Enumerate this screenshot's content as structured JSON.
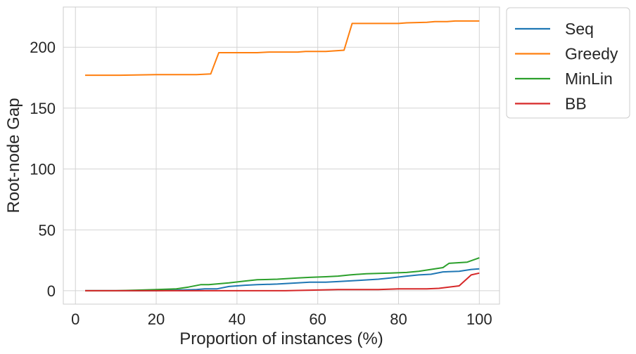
{
  "chart_data": {
    "type": "line",
    "title": "",
    "xlabel": "Proportion of instances (%)",
    "ylabel": "Root-node Gap",
    "xlim": [
      -3,
      105
    ],
    "ylim": [
      -11,
      233
    ],
    "xticks": [
      0,
      20,
      40,
      60,
      80,
      100
    ],
    "yticks": [
      0,
      50,
      100,
      150,
      200
    ],
    "grid": true,
    "legend_position": "outside top-right",
    "series": [
      {
        "name": "Seq",
        "color": "#1f77b4",
        "x": [
          2.4,
          10,
          20,
          25,
          30,
          32,
          35,
          38,
          42,
          45,
          50,
          55,
          58,
          62,
          65,
          70,
          75,
          78,
          82,
          85,
          88,
          91,
          95,
          98,
          100
        ],
        "y": [
          0,
          0,
          0,
          0.5,
          1,
          1.5,
          1.5,
          3.5,
          4.5,
          5,
          5.5,
          6.5,
          7,
          7,
          7.5,
          8.5,
          9.5,
          10.5,
          12,
          13,
          13.5,
          15.5,
          16,
          17.5,
          18
        ]
      },
      {
        "name": "Greedy",
        "color": "#ff7f0e",
        "x": [
          2.4,
          11,
          20,
          30,
          33.5,
          35.5,
          45,
          48,
          55,
          57,
          62,
          66.5,
          68.5,
          75,
          80,
          82,
          87,
          89,
          92,
          94,
          100
        ],
        "y": [
          177,
          177,
          177.5,
          177.5,
          178,
          195.5,
          195.5,
          196,
          196,
          196.5,
          196.5,
          197.5,
          219.5,
          219.5,
          219.5,
          220,
          220.5,
          221,
          221,
          221.5,
          221.5
        ]
      },
      {
        "name": "MinLin",
        "color": "#2ca02c",
        "x": [
          2.4,
          10,
          15,
          20,
          25,
          28,
          31,
          33,
          38,
          42,
          45,
          50,
          55,
          58,
          62,
          65,
          68,
          72,
          78,
          82,
          85,
          88,
          91,
          92.5,
          97,
          100
        ],
        "y": [
          0,
          0,
          0.5,
          1,
          1.5,
          3,
          5,
          5,
          6.5,
          8,
          9,
          9.5,
          10.5,
          11,
          11.5,
          12,
          13,
          14,
          14.5,
          15,
          16,
          17.5,
          19,
          22.5,
          23.5,
          27
        ]
      },
      {
        "name": "BB",
        "color": "#d62728",
        "x": [
          2.4,
          20,
          40,
          52,
          58,
          65,
          75,
          80,
          87,
          90,
          95,
          98,
          100
        ],
        "y": [
          0,
          0,
          0,
          0,
          0.5,
          1,
          1,
          1.5,
          1.5,
          2,
          4,
          13,
          14.5
        ]
      }
    ]
  }
}
